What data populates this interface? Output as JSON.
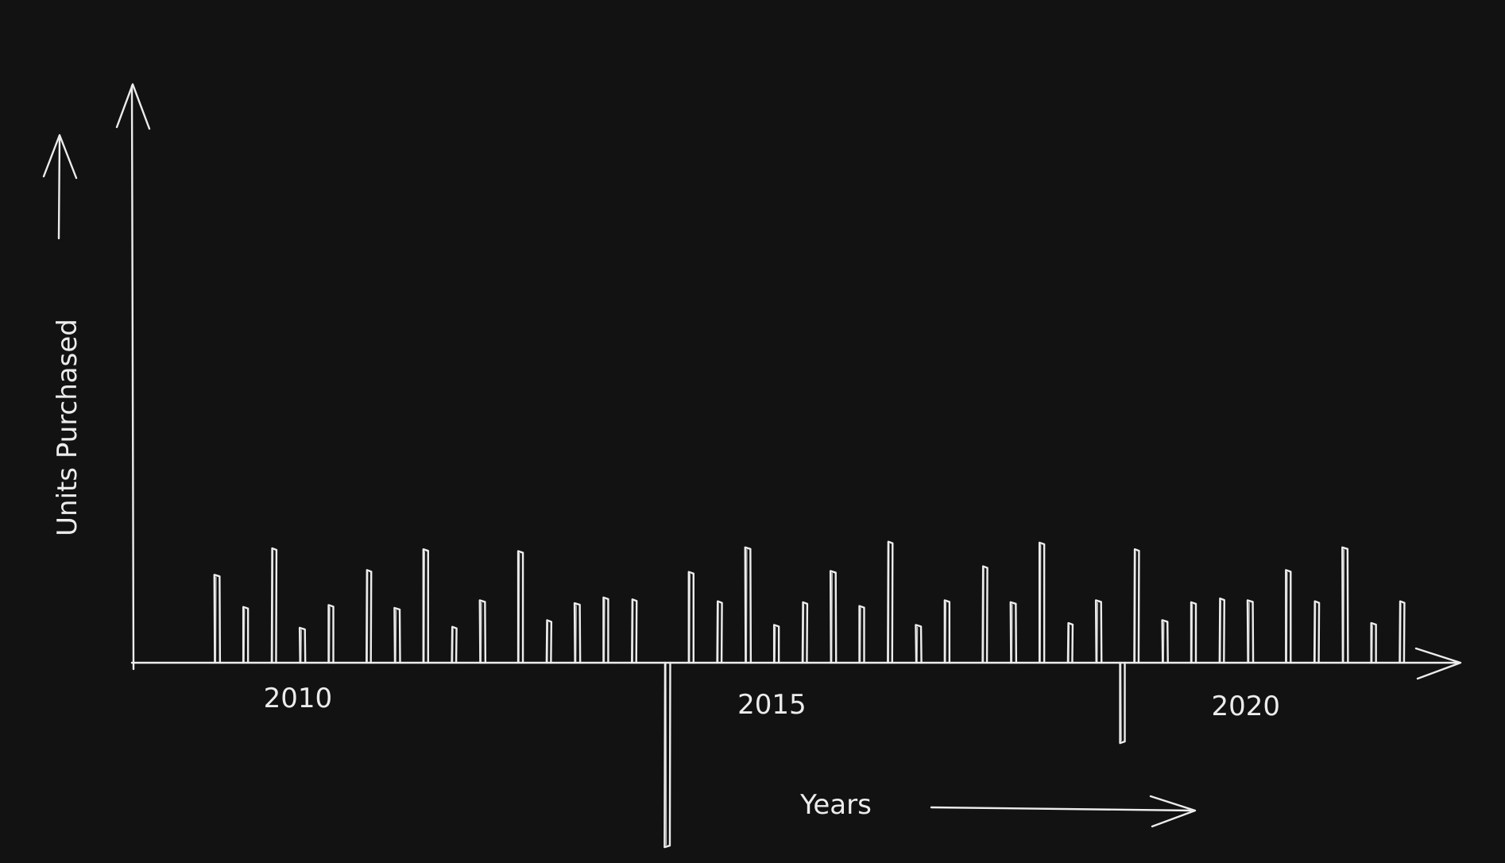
{
  "chart_data": {
    "type": "bar",
    "style": "hand-drawn sketch, white strokes on dark background",
    "xlabel": "Years",
    "ylabel": "Units Purchased",
    "x_tick_labels": [
      "2010",
      "2015",
      "2020"
    ],
    "x_tick_values": [
      2010,
      2015,
      2020
    ],
    "xlim": [
      2008.5,
      2022.5
    ],
    "ylim": [
      -1.7,
      6.1
    ],
    "grid": false,
    "legend": "none",
    "bars": [
      {
        "x": 2009.4,
        "value": 0.93
      },
      {
        "x": 2009.7,
        "value": 0.59
      },
      {
        "x": 2010.0,
        "value": 1.21
      },
      {
        "x": 2010.3,
        "value": 0.37
      },
      {
        "x": 2010.6,
        "value": 0.61
      },
      {
        "x": 2011.0,
        "value": 0.98
      },
      {
        "x": 2011.3,
        "value": 0.58
      },
      {
        "x": 2011.6,
        "value": 1.2
      },
      {
        "x": 2011.9,
        "value": 0.38
      },
      {
        "x": 2012.2,
        "value": 0.66
      },
      {
        "x": 2012.6,
        "value": 1.18
      },
      {
        "x": 2012.9,
        "value": 0.45
      },
      {
        "x": 2013.2,
        "value": 0.63
      },
      {
        "x": 2013.5,
        "value": 0.69
      },
      {
        "x": 2013.8,
        "value": 0.67
      },
      {
        "x": 2014.15,
        "value": -1.95
      },
      {
        "x": 2014.4,
        "value": 0.96
      },
      {
        "x": 2014.7,
        "value": 0.65
      },
      {
        "x": 2015.0,
        "value": 1.22
      },
      {
        "x": 2015.3,
        "value": 0.4
      },
      {
        "x": 2015.6,
        "value": 0.64
      },
      {
        "x": 2015.9,
        "value": 0.97
      },
      {
        "x": 2016.2,
        "value": 0.6
      },
      {
        "x": 2016.5,
        "value": 1.28
      },
      {
        "x": 2016.8,
        "value": 0.4
      },
      {
        "x": 2017.1,
        "value": 0.66
      },
      {
        "x": 2017.5,
        "value": 1.02
      },
      {
        "x": 2017.8,
        "value": 0.64
      },
      {
        "x": 2018.1,
        "value": 1.27
      },
      {
        "x": 2018.4,
        "value": 0.42
      },
      {
        "x": 2018.7,
        "value": 0.66
      },
      {
        "x": 2018.95,
        "value": -0.85
      },
      {
        "x": 2019.1,
        "value": 1.2
      },
      {
        "x": 2019.4,
        "value": 0.45
      },
      {
        "x": 2019.7,
        "value": 0.64
      },
      {
        "x": 2020.0,
        "value": 0.68
      },
      {
        "x": 2020.3,
        "value": 0.66
      },
      {
        "x": 2020.7,
        "value": 0.98
      },
      {
        "x": 2021.0,
        "value": 0.65
      },
      {
        "x": 2021.3,
        "value": 1.22
      },
      {
        "x": 2021.6,
        "value": 0.42
      },
      {
        "x": 2021.9,
        "value": 0.65
      }
    ]
  }
}
